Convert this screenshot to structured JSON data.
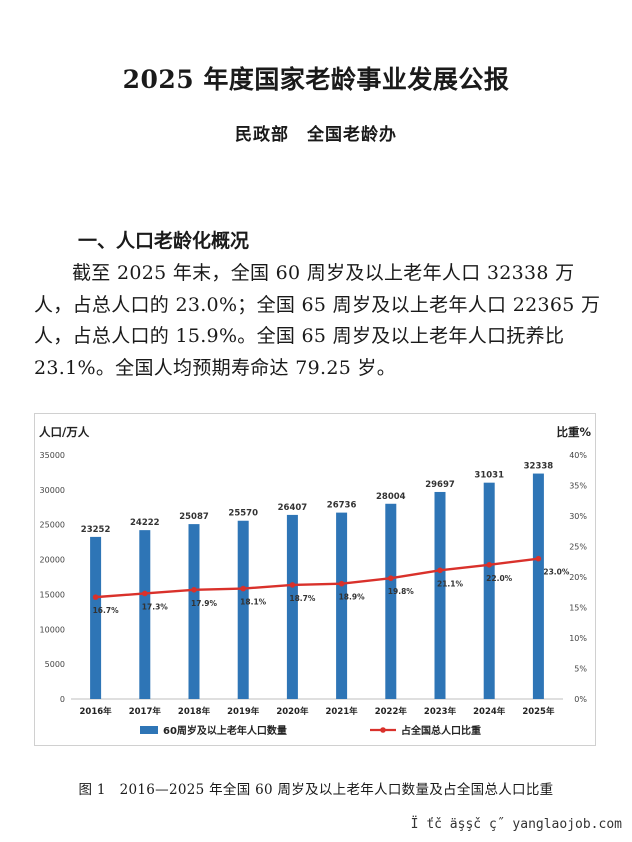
{
  "document": {
    "title": "2025 年度国家老龄事业发展公报",
    "authors": "民政部　全国老龄办",
    "section_heading": "一、人口老龄化概况",
    "paragraph": "截至 2025 年末，全国 60 周岁及以上老年人口 32338 万人，占总人口的 23.0%；全国 65 周岁及以上老年人口 22365 万人，占总人口的 15.9%。全国 65 周岁及以上老年人口抚养比 23.1%。全国人均预期寿命达 79.25 岁。",
    "figure_caption": "图 1　2016—2025 年全国 60 周岁及以上老年人口数量及占全国总人口比重",
    "watermark": "Ï ťč äşşč ç˝ yanglaojob.com"
  },
  "chart_data": {
    "type": "bar",
    "categories": [
      "2016年",
      "2017年",
      "2018年",
      "2019年",
      "2020年",
      "2021年",
      "2022年",
      "2023年",
      "2024年",
      "2025年"
    ],
    "series": [
      {
        "name": "60周岁及以上老年人口数量",
        "type": "bar",
        "axis": "left",
        "color": "#2e75b6",
        "values": [
          23252,
          24222,
          25087,
          25570,
          26407,
          26736,
          28004,
          29697,
          31031,
          32338
        ]
      },
      {
        "name": "占全国总人口比重",
        "type": "line",
        "axis": "right",
        "color": "#d9312b",
        "values": [
          16.7,
          17.3,
          17.9,
          18.1,
          18.7,
          18.9,
          19.8,
          21.1,
          22.0,
          23.0
        ],
        "labels": [
          "16.7%",
          "17.3%",
          "17.9%",
          "18.1%",
          "18.7%",
          "18.9%",
          "19.8%",
          "21.1%",
          "22.0%",
          "23.0%"
        ]
      }
    ],
    "ylabel": "人口/万人",
    "y2label": "比重%",
    "ylim": [
      0,
      35000
    ],
    "yticks": [
      0,
      5000,
      10000,
      15000,
      20000,
      25000,
      30000,
      35000
    ],
    "y2lim": [
      0,
      40
    ],
    "y2ticks": [
      "0%",
      "5%",
      "10%",
      "15%",
      "20%",
      "25%",
      "30%",
      "35%",
      "40%"
    ],
    "grid": false,
    "legend": "bottom"
  }
}
